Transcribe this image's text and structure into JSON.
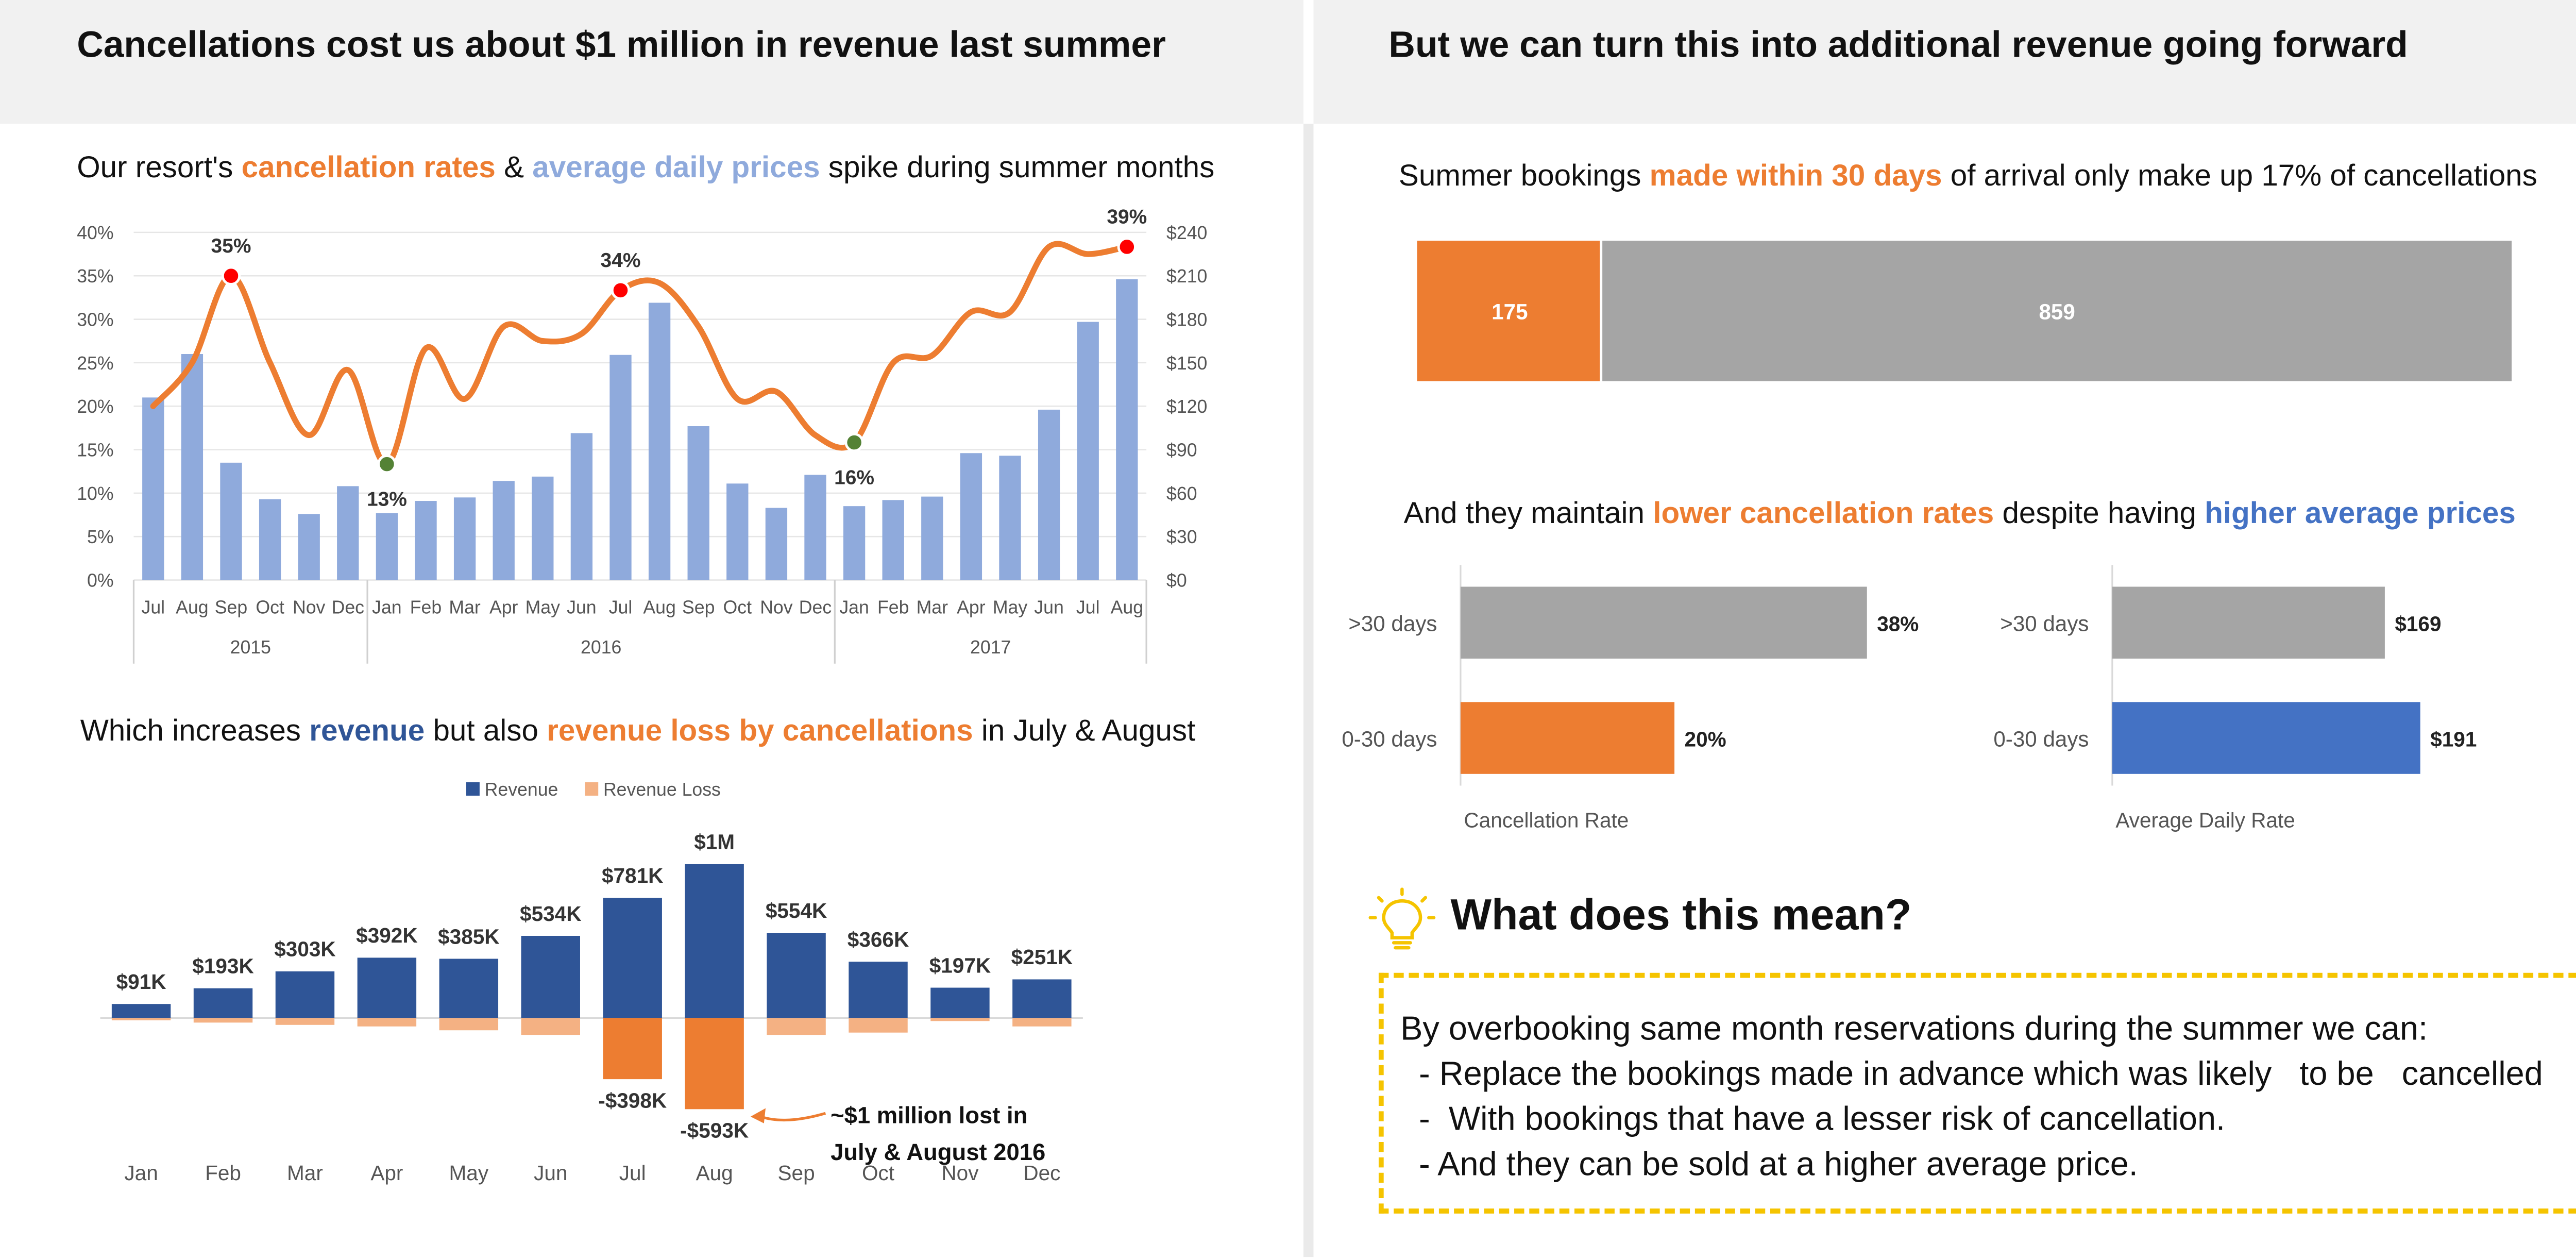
{
  "header": {
    "left_title": "Cancellations cost us about $1 million in revenue last summer",
    "right_title": "But we can turn this into additional revenue going forward"
  },
  "chart1": {
    "subtitle": {
      "p1": "Our resort's ",
      "p2": "cancellation rates",
      "p3": " & ",
      "p4": "average daily prices",
      "p5": " spike during summer months"
    }
  },
  "chart2": {
    "subtitle": {
      "p1": "Which increases ",
      "p2": "revenue",
      "p3": " but also ",
      "p4": "revenue loss by cancellations",
      "p5": " in July & August"
    }
  },
  "chart3": {
    "subtitle": {
      "p1": "Summer bookings ",
      "p2": "made within 30 days",
      "p3": " of arrival only make up 17% of cancellations"
    }
  },
  "chart4": {
    "subtitle": {
      "p1": "And they maintain ",
      "p2": "lower cancellation rates",
      "p3": " despite having ",
      "p4": "higher average prices"
    }
  },
  "meaning": {
    "title": "What does this mean?",
    "icon": "lightbulb-icon",
    "lines": [
      "By overbooking same month reservations during the summer we can:",
      "  - Replace the bookings made in advance which was likely   to be   cancelled",
      "  -  With bookings that have a lesser risk of cancellation.",
      "  - And they can be sold at a higher average price."
    ]
  },
  "colors": {
    "orange": "#ed7d31",
    "light_blue": "#8faadc",
    "dark_blue": "#2f5597",
    "blue": "#4472c4",
    "gray": "#a5a5a5",
    "light_orange": "#f4b183",
    "red_marker": "#ff0000",
    "green_marker": "#548235",
    "highlight_box": "#f5c400"
  },
  "chart_data": [
    {
      "type": "bar",
      "combo_line": true,
      "categories": [
        "Jul",
        "Aug",
        "Sep",
        "Oct",
        "Nov",
        "Dec",
        "Jan",
        "Feb",
        "Mar",
        "Apr",
        "May",
        "Jun",
        "Jul",
        "Aug",
        "Sep",
        "Oct",
        "Nov",
        "Dec",
        "Jan",
        "Feb",
        "Mar",
        "Apr",
        "May",
        "Jun",
        "Jul",
        "Aug"
      ],
      "year_groups": [
        {
          "label": "2015",
          "count": 6
        },
        {
          "label": "2016",
          "count": 12
        },
        {
          "label": "2017",
          "count": 8
        }
      ],
      "series": [
        {
          "values": [
            21,
            26,
            13.5,
            9.3,
            7.6,
            10.8,
            7.7,
            9.1,
            9.5,
            11.4,
            11.9,
            16.9,
            25.9,
            31.9,
            17.7,
            11.1,
            8.3,
            12.1,
            8.5,
            9.2,
            9.6,
            14.6,
            14.3,
            19.6,
            29.7,
            34.6
          ],
          "axis": "left"
        },
        {
          "values": [
            120,
            150,
            210,
            150,
            100,
            145,
            80,
            160,
            125,
            175,
            165,
            170,
            200,
            205,
            175,
            125,
            130,
            100,
            95,
            150,
            155,
            185,
            185,
            230,
            225,
            230
          ],
          "axis": "right"
        }
      ],
      "yticks_left": [
        "0%",
        "5%",
        "10%",
        "15%",
        "20%",
        "25%",
        "30%",
        "35%",
        "40%"
      ],
      "yticks_right": [
        "$0",
        "$30",
        "$60",
        "$90",
        "$120",
        "$150",
        "$180",
        "$210",
        "$240"
      ],
      "ylim_left": [
        0,
        40
      ],
      "ylim_right": [
        0,
        240
      ],
      "annotations": [
        {
          "label": "35%",
          "index": 2,
          "marker": "max"
        },
        {
          "label": "13%",
          "index": 6,
          "marker": "min"
        },
        {
          "label": "34%",
          "index": 12,
          "marker": "max"
        },
        {
          "label": "16%",
          "index": 18,
          "marker": "min"
        },
        {
          "label": "39%",
          "index": 25,
          "marker": "max"
        }
      ]
    },
    {
      "type": "bar",
      "categories": [
        "Jan",
        "Feb",
        "Mar",
        "Apr",
        "May",
        "Jun",
        "Jul",
        "Aug",
        "Sep",
        "Oct",
        "Nov",
        "Dec"
      ],
      "series": [
        {
          "name": "Revenue",
          "values": [
            91,
            193,
            303,
            392,
            385,
            534,
            781,
            1000,
            554,
            366,
            197,
            251
          ],
          "labels": [
            "$91K",
            "$193K",
            "$303K",
            "$392K",
            "$385K",
            "$534K",
            "$781K",
            "$1M",
            "$554K",
            "$366K",
            "$197K",
            "$251K"
          ]
        },
        {
          "name": "Revenue Loss",
          "values": [
            -15,
            -30,
            -45,
            -55,
            -80,
            -110,
            -398,
            -593,
            -110,
            -95,
            -20,
            -55
          ],
          "labels": [
            "",
            "",
            "",
            "",
            "",
            "",
            "-$398K",
            "-$593K",
            "",
            "",
            "",
            ""
          ]
        }
      ],
      "legend_position": "top",
      "annotations": [
        {
          "text": "~$1 million lost in",
          "text2": "July & August 2016",
          "target": "Aug"
        }
      ]
    },
    {
      "type": "bar",
      "orientation": "horizontal-stacked",
      "values": [
        175,
        859
      ],
      "labels": [
        "175",
        "859"
      ]
    },
    {
      "type": "bar",
      "orientation": "horizontal",
      "categories": [
        ">30 days",
        "0-30 days"
      ],
      "values": [
        38,
        20
      ],
      "labels": [
        "38%",
        "20%"
      ],
      "xlabel": "Cancellation Rate"
    },
    {
      "type": "bar",
      "orientation": "horizontal",
      "categories": [
        ">30 days",
        "0-30 days"
      ],
      "values": [
        169,
        191
      ],
      "labels": [
        "$169",
        "$191"
      ],
      "xlabel": "Average Daily Rate"
    }
  ]
}
